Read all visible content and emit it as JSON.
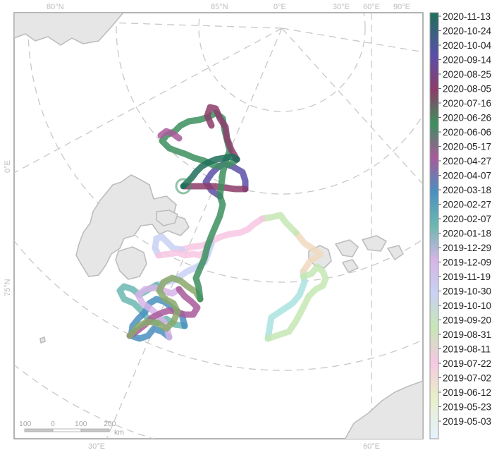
{
  "map": {
    "graticule_labels_top": [
      "80°N",
      "85°N",
      "0°E",
      "30°E",
      "60°E",
      "90°E"
    ],
    "graticule_labels_left": [
      "0°E",
      "75°N"
    ],
    "graticule_labels_bottom": [
      "30°E",
      "60°E"
    ]
  },
  "legend": {
    "dates": [
      "2020-11-13",
      "2020-10-24",
      "2020-10-04",
      "2020-09-14",
      "2020-08-25",
      "2020-08-05",
      "2020-07-16",
      "2020-06-26",
      "2020-06-06",
      "2020-05-17",
      "2020-04-27",
      "2020-04-07",
      "2020-03-18",
      "2020-02-27",
      "2020-02-07",
      "2020-01-18",
      "2019-12-29",
      "2019-12-09",
      "2019-11-19",
      "2019-10-30",
      "2019-10-10",
      "2019-09-20",
      "2019-08-31",
      "2019-08-11",
      "2019-07-22",
      "2019-07-02",
      "2019-06-12",
      "2019-05-23",
      "2019-05-03"
    ]
  },
  "scale_bar": {
    "ticks": [
      "100",
      "0",
      "100",
      "200"
    ],
    "unit": "km"
  }
}
